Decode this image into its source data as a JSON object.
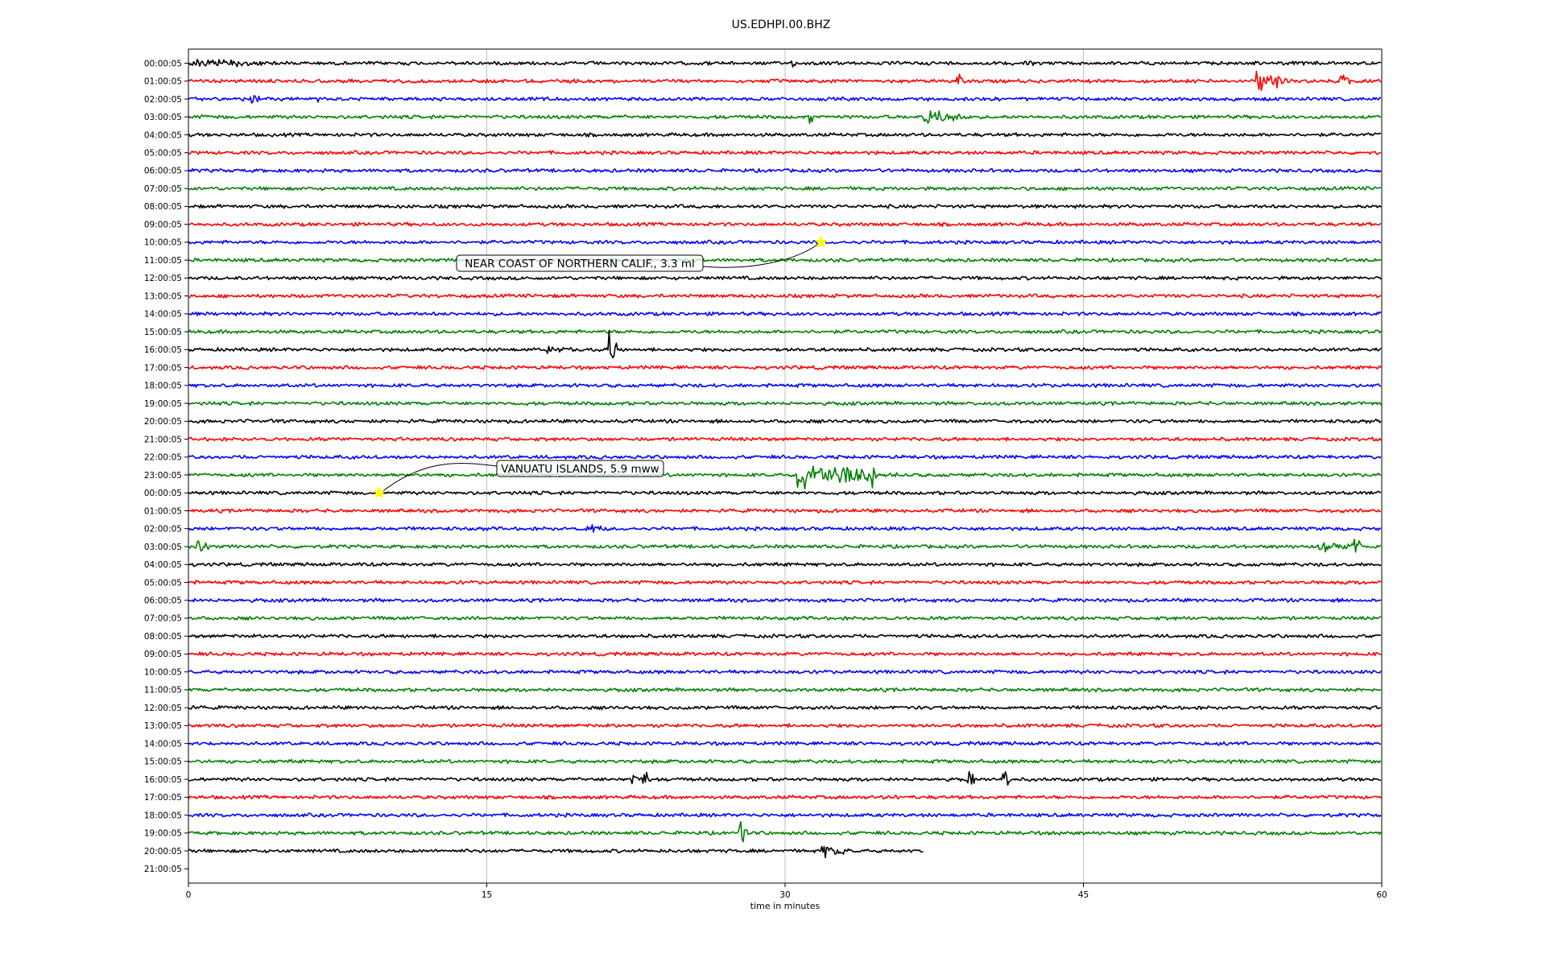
{
  "chart_data": {
    "type": "line",
    "title": "US.EDHPI.00.BHZ",
    "xlabel": "time in minutes",
    "ylabel": "",
    "xlim": [
      0,
      60
    ],
    "x_ticks": [
      "0",
      "15",
      "30",
      "45",
      "60"
    ],
    "x_tick_values": [
      0,
      15,
      30,
      45,
      60
    ],
    "grid": "vertical lines at x ticks",
    "row_labels": [
      "00:00:05",
      "01:00:05",
      "02:00:05",
      "03:00:05",
      "04:00:05",
      "05:00:05",
      "06:00:05",
      "07:00:05",
      "08:00:05",
      "09:00:05",
      "10:00:05",
      "11:00:05",
      "12:00:05",
      "13:00:05",
      "14:00:05",
      "15:00:05",
      "16:00:05",
      "17:00:05",
      "18:00:05",
      "19:00:05",
      "20:00:05",
      "21:00:05",
      "22:00:05",
      "23:00:05",
      "00:00:05",
      "01:00:05",
      "02:00:05",
      "03:00:05",
      "04:00:05",
      "05:00:05",
      "06:00:05",
      "07:00:05",
      "08:00:05",
      "09:00:05",
      "10:00:05",
      "11:00:05",
      "12:00:05",
      "13:00:05",
      "14:00:05",
      "15:00:05",
      "16:00:05",
      "17:00:05",
      "18:00:05",
      "19:00:05",
      "20:00:05",
      "21:00:05"
    ],
    "trace_colors": [
      "#000000",
      "#ff0000",
      "#0000ff",
      "#008000"
    ],
    "trace_rows": 45,
    "last_trace_end_minute": 37,
    "events": [
      {
        "row": 24,
        "minute": 9.6,
        "label": "VANUATU ISLANDS, 5.9 mww"
      },
      {
        "row": 10,
        "minute": 31.8,
        "label": "NEAR COAST OF NORTHERN CALIF., 3.3 ml"
      }
    ],
    "event_marker_color": "#ffff00",
    "bursts": [
      {
        "row": 0,
        "minute": 0.2,
        "amp": 0.5,
        "len": 4.5
      },
      {
        "row": 0,
        "minute": 30.3,
        "amp": 0.5,
        "len": 0.5
      },
      {
        "row": 0,
        "minute": 42.0,
        "amp": 0.6,
        "len": 0.6
      },
      {
        "row": 1,
        "minute": 38.6,
        "amp": 1.3,
        "len": 0.3
      },
      {
        "row": 1,
        "minute": 53.6,
        "amp": 1.3,
        "len": 1.6
      },
      {
        "row": 1,
        "minute": 57.8,
        "amp": 1.1,
        "len": 0.6
      },
      {
        "row": 2,
        "minute": 3.1,
        "amp": 0.7,
        "len": 0.5
      },
      {
        "row": 2,
        "minute": 6.5,
        "amp": 0.6,
        "len": 0.2
      },
      {
        "row": 2,
        "minute": 17.9,
        "amp": 0.7,
        "len": 0.3
      },
      {
        "row": 2,
        "minute": 36.9,
        "amp": 0.7,
        "len": 0.3
      },
      {
        "row": 3,
        "minute": 31.2,
        "amp": 1.4,
        "len": 0.2
      },
      {
        "row": 3,
        "minute": 37.0,
        "amp": 1.0,
        "len": 1.4
      },
      {
        "row": 3,
        "minute": 38.4,
        "amp": 0.6,
        "len": 0.9
      },
      {
        "row": 16,
        "minute": 18.0,
        "amp": 0.4,
        "len": 2.0
      },
      {
        "row": 16,
        "minute": 21.1,
        "amp": 2.2,
        "len": 0.5
      },
      {
        "row": 23,
        "minute": 30.6,
        "amp": 1.6,
        "len": 3.6
      },
      {
        "row": 23,
        "minute": 34.3,
        "amp": 1.7,
        "len": 0.3
      },
      {
        "row": 23,
        "minute": 35.5,
        "amp": 0.6,
        "len": 0.5
      },
      {
        "row": 26,
        "minute": 20.0,
        "amp": 0.6,
        "len": 1.0
      },
      {
        "row": 27,
        "minute": 0.4,
        "amp": 1.0,
        "len": 0.6
      },
      {
        "row": 27,
        "minute": 56.7,
        "amp": 0.6,
        "len": 2.3
      },
      {
        "row": 27,
        "minute": 58.6,
        "amp": 1.3,
        "len": 0.4
      },
      {
        "row": 40,
        "minute": 22.3,
        "amp": 0.8,
        "len": 0.9
      },
      {
        "row": 40,
        "minute": 22.8,
        "amp": 1.8,
        "len": 0.3
      },
      {
        "row": 40,
        "minute": 39.1,
        "amp": 1.3,
        "len": 0.4
      },
      {
        "row": 40,
        "minute": 40.9,
        "amp": 1.9,
        "len": 0.4
      },
      {
        "row": 41,
        "minute": 35.5,
        "amp": 0.6,
        "len": 0.5
      },
      {
        "row": 43,
        "minute": 27.7,
        "amp": 1.3,
        "len": 0.5
      },
      {
        "row": 43,
        "minute": 43.5,
        "amp": 0.6,
        "len": 0.4
      },
      {
        "row": 44,
        "minute": 31.8,
        "amp": 0.7,
        "len": 1.4
      }
    ]
  }
}
